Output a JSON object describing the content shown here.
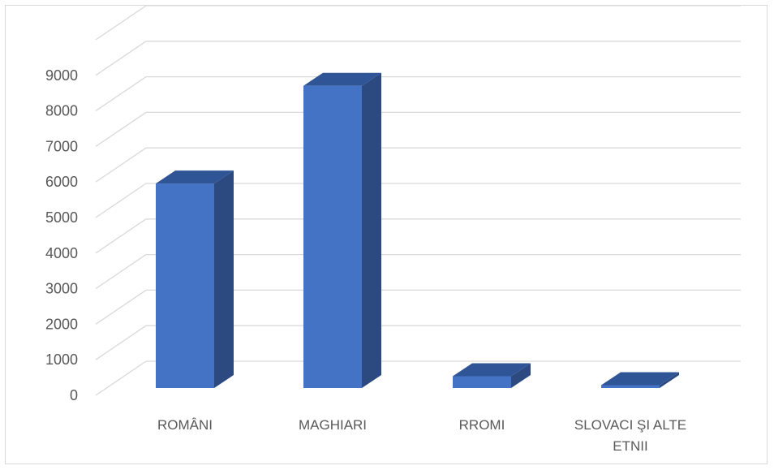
{
  "chart_data": {
    "type": "bar",
    "categories": [
      "ROMÂNI",
      "MAGHIARI",
      "RROMI",
      "SLOVACI ŞI ALTE ETNII"
    ],
    "category_lines": [
      [
        "ROMÂNI"
      ],
      [
        "MAGHIARI"
      ],
      [
        "RROMI"
      ],
      [
        "SLOVACI ŞI ALTE",
        "ETNII"
      ]
    ],
    "series": [
      {
        "values": [
          5750,
          8500,
          330,
          80
        ]
      }
    ],
    "ylim": [
      0,
      9000
    ],
    "yticks": [
      0,
      1000,
      2000,
      3000,
      4000,
      5000,
      6000,
      7000,
      8000,
      9000
    ],
    "grid": true,
    "style": "3d-column",
    "colors": {
      "front": "#4472c4",
      "top": "#2f5597",
      "side": "#2c4a80",
      "grid": "#d9d9d9",
      "text": "#595959"
    }
  }
}
